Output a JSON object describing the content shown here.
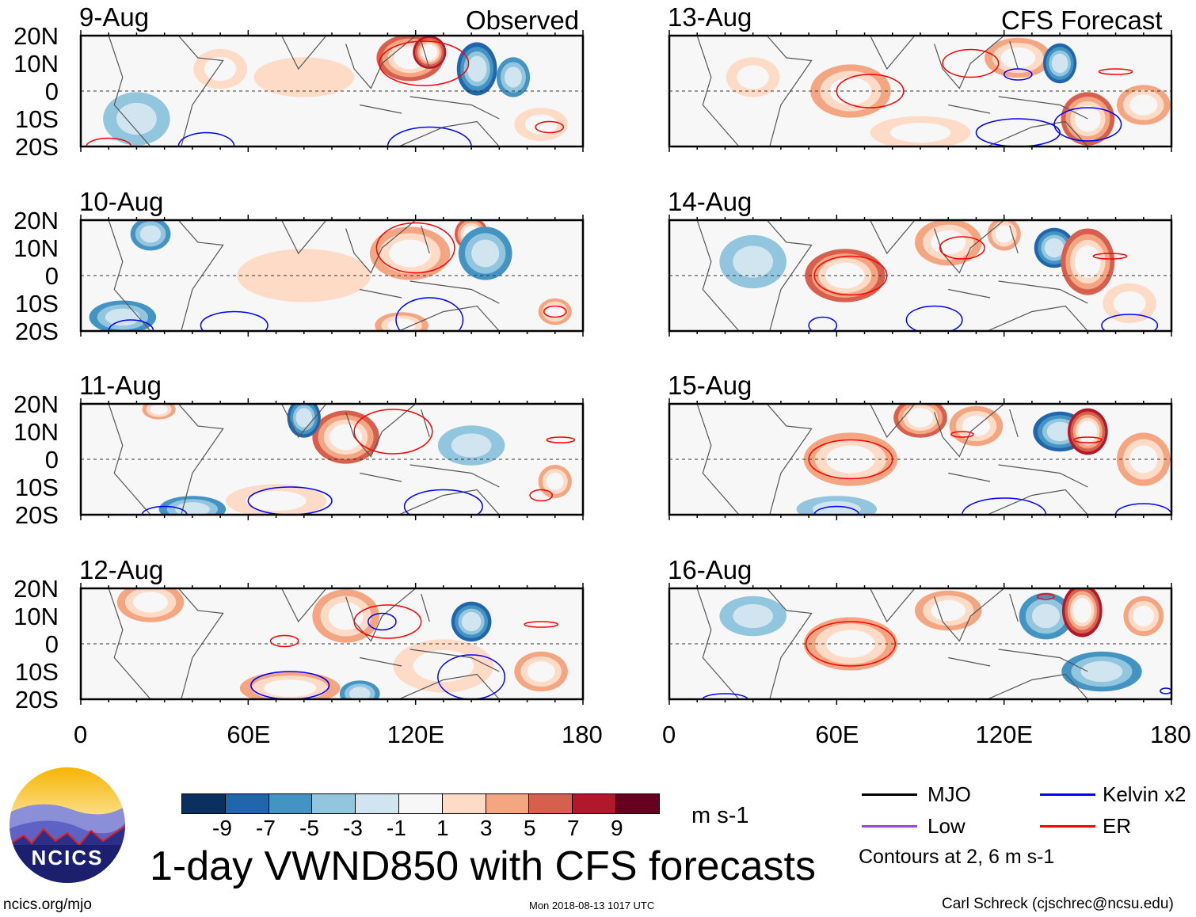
{
  "title": "1-day VWND850 with CFS forecasts",
  "labels": {
    "observed": "Observed",
    "forecast": "CFS Forecast"
  },
  "lat_ticks": [
    "20N",
    "10N",
    "0",
    "10S",
    "20S"
  ],
  "lon_ticks": [
    "0",
    "60E",
    "120E",
    "180"
  ],
  "colorbar": {
    "levels": [
      "-9",
      "-7",
      "-5",
      "-3",
      "-1",
      "1",
      "3",
      "5",
      "7",
      "9"
    ],
    "colors": [
      "#0a3060",
      "#2166ac",
      "#4393c3",
      "#92c5de",
      "#d1e5f0",
      "#f7f7f7",
      "#fddbc7",
      "#f4a582",
      "#d6604d",
      "#b2182b",
      "#67001f"
    ],
    "units": "m s-1"
  },
  "legend": {
    "items": [
      {
        "label": "MJO",
        "color": "#000000"
      },
      {
        "label": "Kelvin x2",
        "color": "#0000ff"
      },
      {
        "label": "Low",
        "color": "#a040f0"
      },
      {
        "label": "ER",
        "color": "#ff0000"
      }
    ],
    "note": "Contours at 2, 6 m s-1"
  },
  "footer": {
    "left": "ncics.org/mjo",
    "center": "Mon 2018-08-13 1017 UTC",
    "right": "Carl Schreck (cjschrec@ncsu.edu)",
    "logo": "NCICS"
  },
  "chart_data": [
    {
      "type": "heatmap",
      "title": "9-Aug",
      "xlim": [
        0,
        180
      ],
      "ylim": [
        -20,
        20
      ],
      "blobs": [
        [
          118,
          12,
          10,
          7,
          7
        ],
        [
          125,
          14,
          5,
          5,
          9
        ],
        [
          142,
          8,
          6,
          8,
          -7
        ],
        [
          155,
          5,
          5,
          6,
          -5
        ],
        [
          50,
          8,
          8,
          6,
          3
        ],
        [
          20,
          -10,
          10,
          8,
          -3
        ],
        [
          165,
          -12,
          8,
          5,
          3
        ],
        [
          80,
          5,
          15,
          6,
          1.5
        ]
      ],
      "contours": [
        [
          123,
          10,
          16,
          8,
          "ER"
        ],
        [
          125,
          -20,
          15,
          7,
          "Kelvin"
        ],
        [
          45,
          -20,
          10,
          5,
          "Kelvin"
        ],
        [
          168,
          -13,
          5,
          2,
          "ER"
        ],
        [
          10,
          -20,
          8,
          3,
          "ER"
        ]
      ]
    },
    {
      "type": "heatmap",
      "title": "10-Aug",
      "xlim": [
        0,
        180
      ],
      "ylim": [
        -20,
        20
      ],
      "blobs": [
        [
          118,
          8,
          12,
          8,
          5
        ],
        [
          140,
          15,
          5,
          5,
          7
        ],
        [
          145,
          8,
          8,
          8,
          -5
        ],
        [
          25,
          15,
          6,
          5,
          -5
        ],
        [
          15,
          -15,
          10,
          5,
          -5
        ],
        [
          170,
          -13,
          5,
          4,
          5
        ],
        [
          80,
          0,
          20,
          8,
          1.5
        ],
        [
          115,
          -18,
          8,
          4,
          5
        ]
      ],
      "contours": [
        [
          120,
          10,
          14,
          9,
          "ER"
        ],
        [
          125,
          -16,
          12,
          8,
          "Kelvin"
        ],
        [
          55,
          -18,
          12,
          5,
          "Kelvin"
        ],
        [
          18,
          -20,
          8,
          4,
          "Kelvin"
        ],
        [
          170,
          -13,
          4,
          2,
          "ER"
        ]
      ]
    },
    {
      "type": "heatmap",
      "title": "11-Aug",
      "xlim": [
        0,
        180
      ],
      "ylim": [
        -20,
        20
      ],
      "blobs": [
        [
          95,
          8,
          10,
          8,
          7
        ],
        [
          80,
          15,
          5,
          6,
          -7
        ],
        [
          28,
          18,
          5,
          3,
          5
        ],
        [
          140,
          5,
          10,
          6,
          -3
        ],
        [
          170,
          -8,
          5,
          5,
          5
        ],
        [
          70,
          -15,
          15,
          5,
          3
        ],
        [
          40,
          -18,
          10,
          4,
          -5
        ]
      ],
      "contours": [
        [
          112,
          10,
          14,
          8,
          "ER"
        ],
        [
          75,
          -15,
          15,
          5,
          "Kelvin"
        ],
        [
          130,
          -17,
          14,
          6,
          "Kelvin"
        ],
        [
          30,
          -20,
          8,
          3,
          "Kelvin"
        ],
        [
          165,
          -13,
          4,
          2,
          "ER"
        ],
        [
          172,
          7,
          5,
          1,
          "ER"
        ]
      ]
    },
    {
      "type": "heatmap",
      "title": "12-Aug",
      "xlim": [
        0,
        180
      ],
      "ylim": [
        -20,
        20
      ],
      "blobs": [
        [
          25,
          15,
          10,
          6,
          5
        ],
        [
          95,
          10,
          10,
          8,
          5
        ],
        [
          140,
          8,
          6,
          6,
          -7
        ],
        [
          75,
          -16,
          15,
          5,
          5
        ],
        [
          165,
          -10,
          8,
          6,
          5
        ],
        [
          100,
          -18,
          6,
          4,
          -5
        ],
        [
          130,
          -8,
          15,
          8,
          3
        ]
      ],
      "contours": [
        [
          110,
          8,
          12,
          6,
          "ER"
        ],
        [
          108,
          8,
          5,
          3,
          "Kelvin"
        ],
        [
          75,
          -15,
          14,
          5,
          "Kelvin"
        ],
        [
          140,
          -12,
          12,
          8,
          "Kelvin"
        ],
        [
          73,
          1,
          5,
          2,
          "ER"
        ],
        [
          165,
          7,
          6,
          1,
          "ER"
        ]
      ]
    },
    {
      "type": "heatmap",
      "title": "13-Aug",
      "xlim": [
        0,
        180
      ],
      "ylim": [
        -20,
        20
      ],
      "blobs": [
        [
          65,
          0,
          12,
          8,
          5
        ],
        [
          125,
          12,
          10,
          6,
          5
        ],
        [
          140,
          10,
          5,
          6,
          -7
        ],
        [
          150,
          -10,
          8,
          8,
          7
        ],
        [
          170,
          -5,
          8,
          6,
          5
        ],
        [
          30,
          5,
          8,
          6,
          3
        ],
        [
          90,
          -15,
          15,
          5,
          3
        ]
      ],
      "contours": [
        [
          72,
          0,
          12,
          6,
          "ER"
        ],
        [
          108,
          10,
          10,
          5,
          "ER"
        ],
        [
          125,
          -15,
          15,
          5,
          "Kelvin"
        ],
        [
          150,
          -12,
          12,
          6,
          "Kelvin"
        ],
        [
          160,
          7,
          6,
          1,
          "ER"
        ],
        [
          125,
          6,
          5,
          2,
          "Kelvin"
        ]
      ]
    },
    {
      "type": "heatmap",
      "title": "14-Aug",
      "xlim": [
        0,
        180
      ],
      "ylim": [
        -20,
        20
      ],
      "blobs": [
        [
          63,
          0,
          12,
          8,
          7
        ],
        [
          100,
          12,
          10,
          7,
          5
        ],
        [
          138,
          10,
          6,
          6,
          -7
        ],
        [
          150,
          5,
          8,
          10,
          7
        ],
        [
          30,
          5,
          10,
          8,
          -3
        ],
        [
          165,
          -10,
          8,
          6,
          3
        ],
        [
          120,
          15,
          5,
          5,
          5
        ]
      ],
      "contours": [
        [
          65,
          0,
          13,
          7,
          "ER"
        ],
        [
          105,
          10,
          8,
          4,
          "ER"
        ],
        [
          95,
          -16,
          10,
          5,
          "Kelvin"
        ],
        [
          165,
          -18,
          10,
          4,
          "Kelvin"
        ],
        [
          158,
          7,
          6,
          1,
          "ER"
        ],
        [
          55,
          -18,
          5,
          3,
          "Kelvin"
        ]
      ]
    },
    {
      "type": "heatmap",
      "title": "15-Aug",
      "xlim": [
        0,
        180
      ],
      "ylim": [
        -20,
        20
      ],
      "blobs": [
        [
          65,
          0,
          14,
          8,
          5
        ],
        [
          90,
          15,
          8,
          6,
          7
        ],
        [
          140,
          10,
          8,
          6,
          -7
        ],
        [
          150,
          10,
          6,
          7,
          9
        ],
        [
          110,
          12,
          8,
          6,
          5
        ],
        [
          170,
          0,
          8,
          8,
          5
        ],
        [
          60,
          -18,
          12,
          4,
          -3
        ]
      ],
      "contours": [
        [
          65,
          0,
          15,
          7,
          "ER"
        ],
        [
          105,
          9,
          4,
          1,
          "ER"
        ],
        [
          120,
          -20,
          15,
          6,
          "Kelvin"
        ],
        [
          170,
          -20,
          10,
          4,
          "Kelvin"
        ],
        [
          150,
          7,
          5,
          1,
          "ER"
        ],
        [
          60,
          -20,
          8,
          3,
          "Kelvin"
        ]
      ]
    },
    {
      "type": "heatmap",
      "title": "16-Aug",
      "xlim": [
        0,
        180
      ],
      "ylim": [
        -20,
        20
      ],
      "blobs": [
        [
          65,
          0,
          14,
          8,
          5
        ],
        [
          100,
          12,
          10,
          6,
          5
        ],
        [
          135,
          10,
          8,
          7,
          -5
        ],
        [
          148,
          12,
          6,
          8,
          9
        ],
        [
          155,
          -10,
          12,
          6,
          -5
        ],
        [
          30,
          10,
          10,
          6,
          -3
        ],
        [
          170,
          10,
          6,
          6,
          5
        ]
      ],
      "contours": [
        [
          65,
          0,
          16,
          8,
          "ER"
        ],
        [
          135,
          17,
          3,
          1,
          "ER"
        ],
        [
          178,
          -17,
          2,
          1,
          "Kelvin"
        ],
        [
          20,
          -20,
          8,
          2,
          "Kelvin"
        ]
      ]
    }
  ]
}
